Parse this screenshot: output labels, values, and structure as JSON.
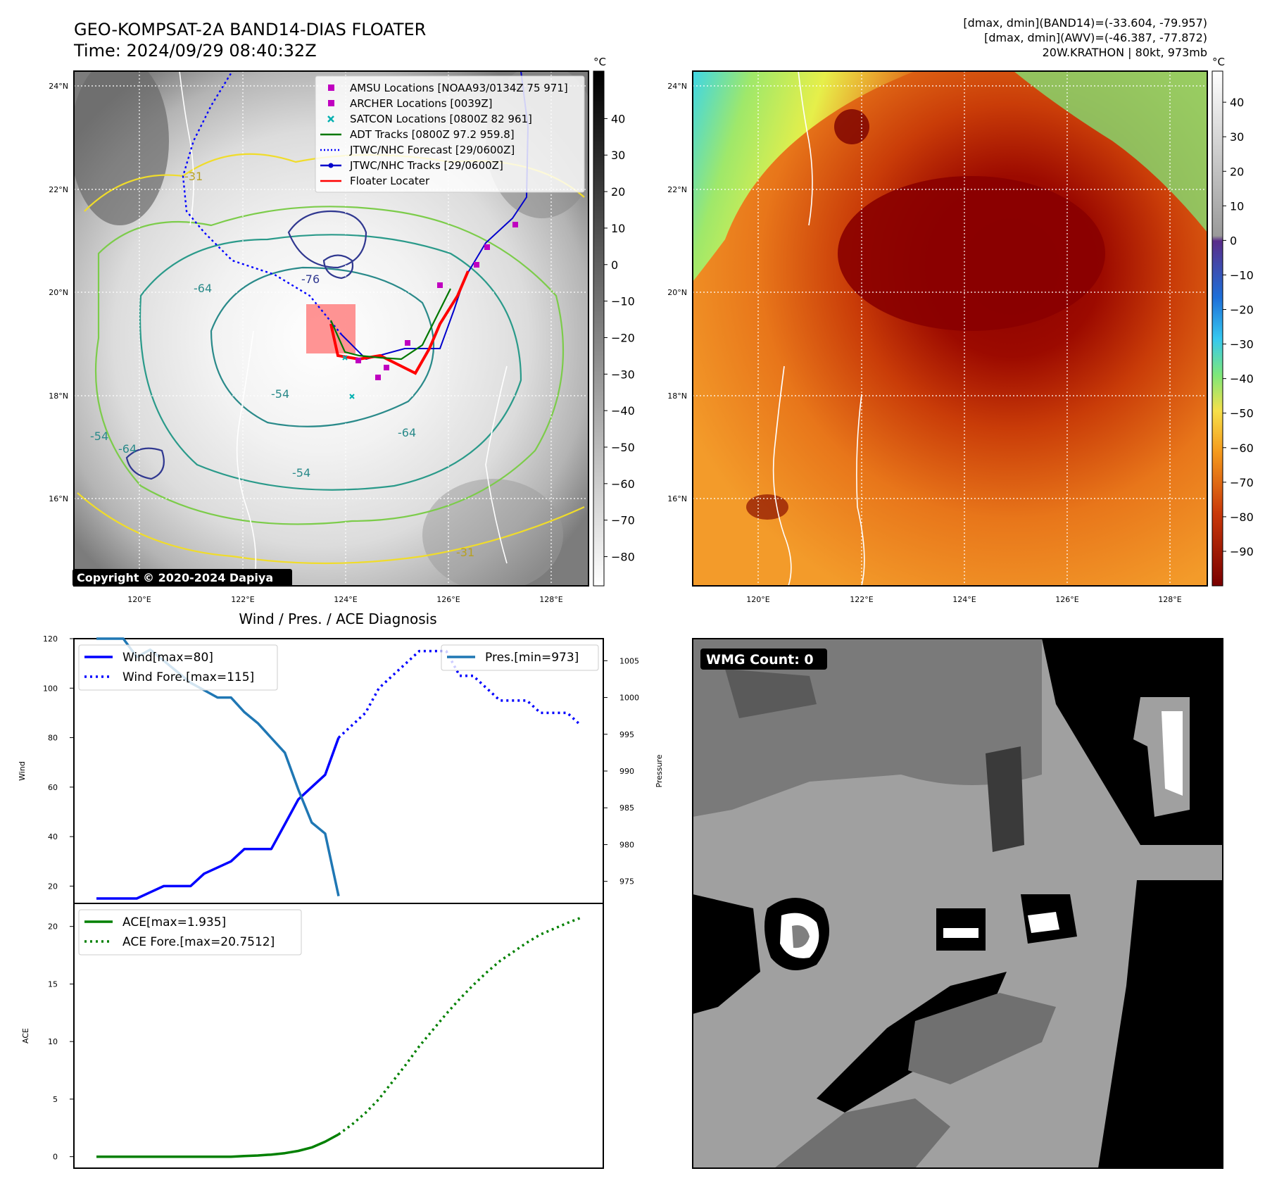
{
  "header": {
    "title_line1": "GEO-KOMPSAT-2A BAND14-DIAS FLOATER",
    "title_line2": "Time: 2024/09/29 08:40:32Z",
    "info_line1": "[dmax, dmin](BAND14)=(-33.604, -79.957)",
    "info_line2": "[dmax, dmin](AWV)=(-46.387, -77.872)",
    "info_line3": "20W.KRATHON | 80kt, 973mb"
  },
  "colors": {
    "wind": "#0000ff",
    "pressure": "#1f77b4",
    "ace": "#008000",
    "jtwc_track": "#0000cc",
    "floater": "#ff0000",
    "amsu": "#c000c0",
    "satcon": "#00b0b0",
    "adt": "#007700"
  },
  "maps": {
    "lat_ticks": [
      "24°N",
      "22°N",
      "20°N",
      "18°N",
      "16°N"
    ],
    "lon_ticks": [
      "120°E",
      "122°E",
      "124°E",
      "126°E",
      "128°E"
    ],
    "unit": "°C",
    "ir_cbar_ticks": [
      "40",
      "30",
      "20",
      "10",
      "0",
      "−10",
      "−20",
      "−30",
      "−40",
      "−50",
      "−60",
      "−70",
      "−80"
    ],
    "enh_cbar_ticks": [
      "40",
      "30",
      "20",
      "10",
      "0",
      "−10",
      "−20",
      "−30",
      "−40",
      "−50",
      "−60",
      "−70",
      "−80",
      "−90"
    ],
    "legend": [
      {
        "label": "AMSU Locations [NOAA93/0134Z 75 971]",
        "marker": "square",
        "color": "#c000c0"
      },
      {
        "label": "ARCHER Locations [0039Z]",
        "marker": "square",
        "color": "#c000c0"
      },
      {
        "label": "SATCON Locations [0800Z 82 961]",
        "marker": "x",
        "color": "#00b0b0"
      },
      {
        "label": "ADT Tracks [0800Z 97.2 959.8]",
        "marker": "line",
        "color": "#007700"
      },
      {
        "label": "JTWC/NHC Forecast [29/0600Z]",
        "marker": "dotted",
        "color": "#0000ff"
      },
      {
        "label": "JTWC/NHC Tracks [29/0600Z]",
        "marker": "line-dot",
        "color": "#0000cc"
      },
      {
        "label": "Floater Locater",
        "marker": "line",
        "color": "#ff0000"
      }
    ],
    "contour_labels": [
      "-64",
      "-54",
      "-64",
      "-76",
      "-54",
      "-64",
      "-54",
      "-31",
      "-31"
    ],
    "copyright": "Copyright © 2020-2024 Dapiya",
    "wmg_label": "WMG Count: 0"
  },
  "chart_data": [
    {
      "type": "line",
      "title": "Wind / Pres. / ACE Diagnosis",
      "ylabel": "Wind",
      "ylim": [
        13,
        120
      ],
      "y_ticks": [
        20,
        40,
        60,
        80,
        100,
        120
      ],
      "x_index_range": [
        0,
        36
      ],
      "series": [
        {
          "name": "Wind[max=80]",
          "style": "solid",
          "x": [
            0,
            3,
            4,
            5,
            7,
            8,
            10,
            11,
            12,
            13,
            14,
            15,
            16,
            17,
            18
          ],
          "values": [
            15,
            15,
            17.5,
            20,
            20,
            25,
            30,
            35,
            35,
            35,
            45,
            55,
            60,
            65,
            80
          ]
        },
        {
          "name": "Wind Fore.[max=115]",
          "style": "dotted",
          "x": [
            18,
            19,
            20,
            21,
            22,
            23,
            24,
            25,
            26,
            27,
            28,
            29,
            30,
            31,
            32,
            33,
            34,
            35,
            36
          ],
          "values": [
            80,
            85,
            90,
            100,
            105,
            110,
            115,
            115,
            115,
            105,
            105,
            100,
            95,
            95,
            95,
            90,
            90,
            90,
            85
          ]
        }
      ],
      "legend": [
        "Wind[max=80]",
        "Wind Fore.[max=115]"
      ]
    },
    {
      "type": "line",
      "ylabel": "Pressure",
      "ylim": [
        972,
        1008
      ],
      "y_ticks": [
        975,
        980,
        985,
        990,
        995,
        1000,
        1005
      ],
      "series": [
        {
          "name": "Pres.[min=973]",
          "x": [
            0,
            1,
            2,
            3,
            4,
            5,
            6,
            7,
            8,
            9,
            10,
            11,
            12,
            13,
            14,
            15,
            16,
            17,
            18
          ],
          "values": [
            1008,
            1008,
            1008,
            1005.5,
            1006.5,
            1005,
            1003.5,
            1002,
            1001,
            1000,
            1000,
            998,
            996.5,
            994.5,
            992.5,
            987.5,
            983,
            981.5,
            973
          ]
        }
      ],
      "legend": [
        "Pres.[min=973]"
      ]
    },
    {
      "type": "line",
      "ylabel": "ACE",
      "ylim": [
        -1,
        22
      ],
      "y_ticks": [
        0,
        5,
        10,
        15,
        20
      ],
      "series": [
        {
          "name": "ACE[max=1.935]",
          "style": "solid",
          "x": [
            0,
            4,
            8,
            9,
            10,
            11,
            12,
            13,
            14,
            15,
            16,
            17,
            18
          ],
          "values": [
            0,
            0,
            0,
            0,
            0,
            0.05,
            0.1,
            0.18,
            0.3,
            0.5,
            0.8,
            1.3,
            1.935
          ]
        },
        {
          "name": "ACE Fore.[max=20.7512]",
          "style": "dotted",
          "x": [
            18,
            19,
            20,
            21,
            22,
            23,
            24,
            25,
            26,
            27,
            28,
            29,
            30,
            31,
            32,
            33,
            34,
            35,
            36
          ],
          "values": [
            1.935,
            2.8,
            3.8,
            5.0,
            6.5,
            8.0,
            9.6,
            11.0,
            12.4,
            13.7,
            14.9,
            16.0,
            17.0,
            17.8,
            18.6,
            19.3,
            19.8,
            20.3,
            20.7512
          ]
        }
      ],
      "legend": [
        "ACE[max=1.935]",
        "ACE Fore.[max=20.7512]"
      ]
    }
  ]
}
